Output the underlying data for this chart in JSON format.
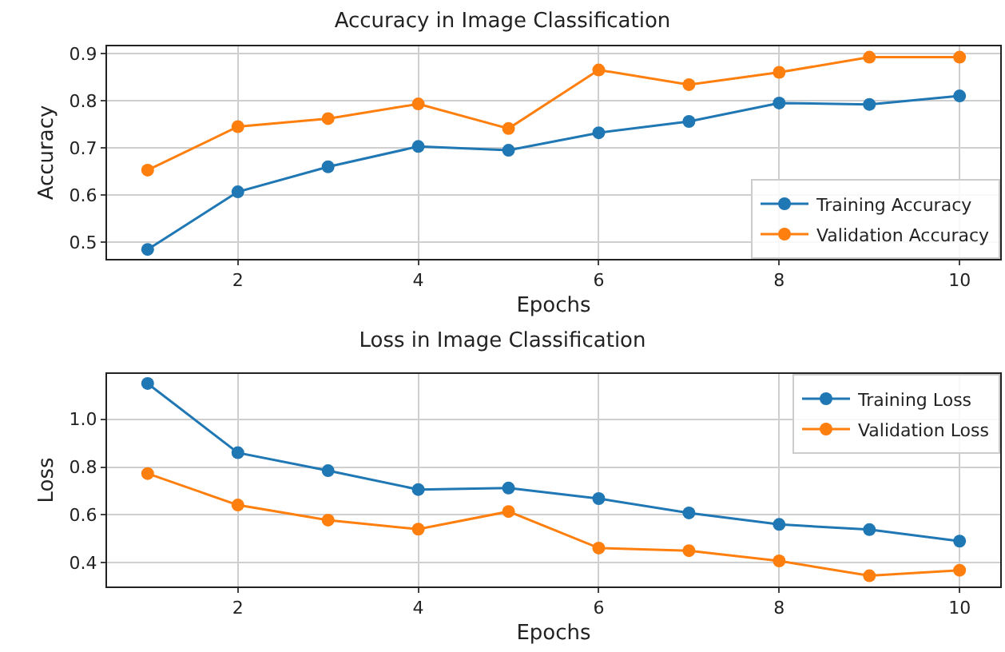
{
  "chart_data": [
    {
      "type": "line",
      "title": "Accuracy in Image Classification",
      "xlabel": "Epochs",
      "ylabel": "Accuracy",
      "x": [
        1,
        2,
        3,
        4,
        5,
        6,
        7,
        8,
        9,
        10
      ],
      "series": [
        {
          "name": "Training Accuracy",
          "color": "#1f77b4",
          "values": [
            0.485,
            0.607,
            0.66,
            0.703,
            0.695,
            0.732,
            0.756,
            0.795,
            0.792,
            0.81
          ]
        },
        {
          "name": "Validation Accuracy",
          "color": "#ff7f0e",
          "values": [
            0.653,
            0.745,
            0.762,
            0.793,
            0.741,
            0.865,
            0.834,
            0.86,
            0.892,
            0.892
          ]
        }
      ],
      "xlim": [
        0.55,
        10.45
      ],
      "xticks": [
        2,
        4,
        6,
        8,
        10
      ],
      "ylim": [
        0.465,
        0.915
      ],
      "yticks": [
        0.5,
        0.6,
        0.7,
        0.8,
        0.9
      ],
      "grid": true,
      "legend": "bottom right",
      "marker": "circle",
      "line_style": "solid"
    },
    {
      "type": "line",
      "title": "Loss in Image Classification",
      "xlabel": "Epochs",
      "ylabel": "Loss",
      "x": [
        1,
        2,
        3,
        4,
        5,
        6,
        7,
        8,
        9,
        10
      ],
      "series": [
        {
          "name": "Training Loss",
          "color": "#1f77b4",
          "values": [
            1.15,
            0.86,
            0.785,
            0.706,
            0.712,
            0.668,
            0.608,
            0.56,
            0.538,
            0.49
          ]
        },
        {
          "name": "Validation Loss",
          "color": "#ff7f0e",
          "values": [
            0.773,
            0.641,
            0.578,
            0.54,
            0.614,
            0.461,
            0.45,
            0.407,
            0.345,
            0.368
          ]
        }
      ],
      "xlim": [
        0.55,
        10.45
      ],
      "xticks": [
        2,
        4,
        6,
        8,
        10
      ],
      "ylim": [
        0.3,
        1.19
      ],
      "yticks": [
        0.4,
        0.6,
        0.8,
        {
          "value": 1.0,
          "label": "1.0"
        }
      ],
      "grid": true,
      "legend": "top right",
      "marker": "circle",
      "line_style": "solid"
    }
  ]
}
